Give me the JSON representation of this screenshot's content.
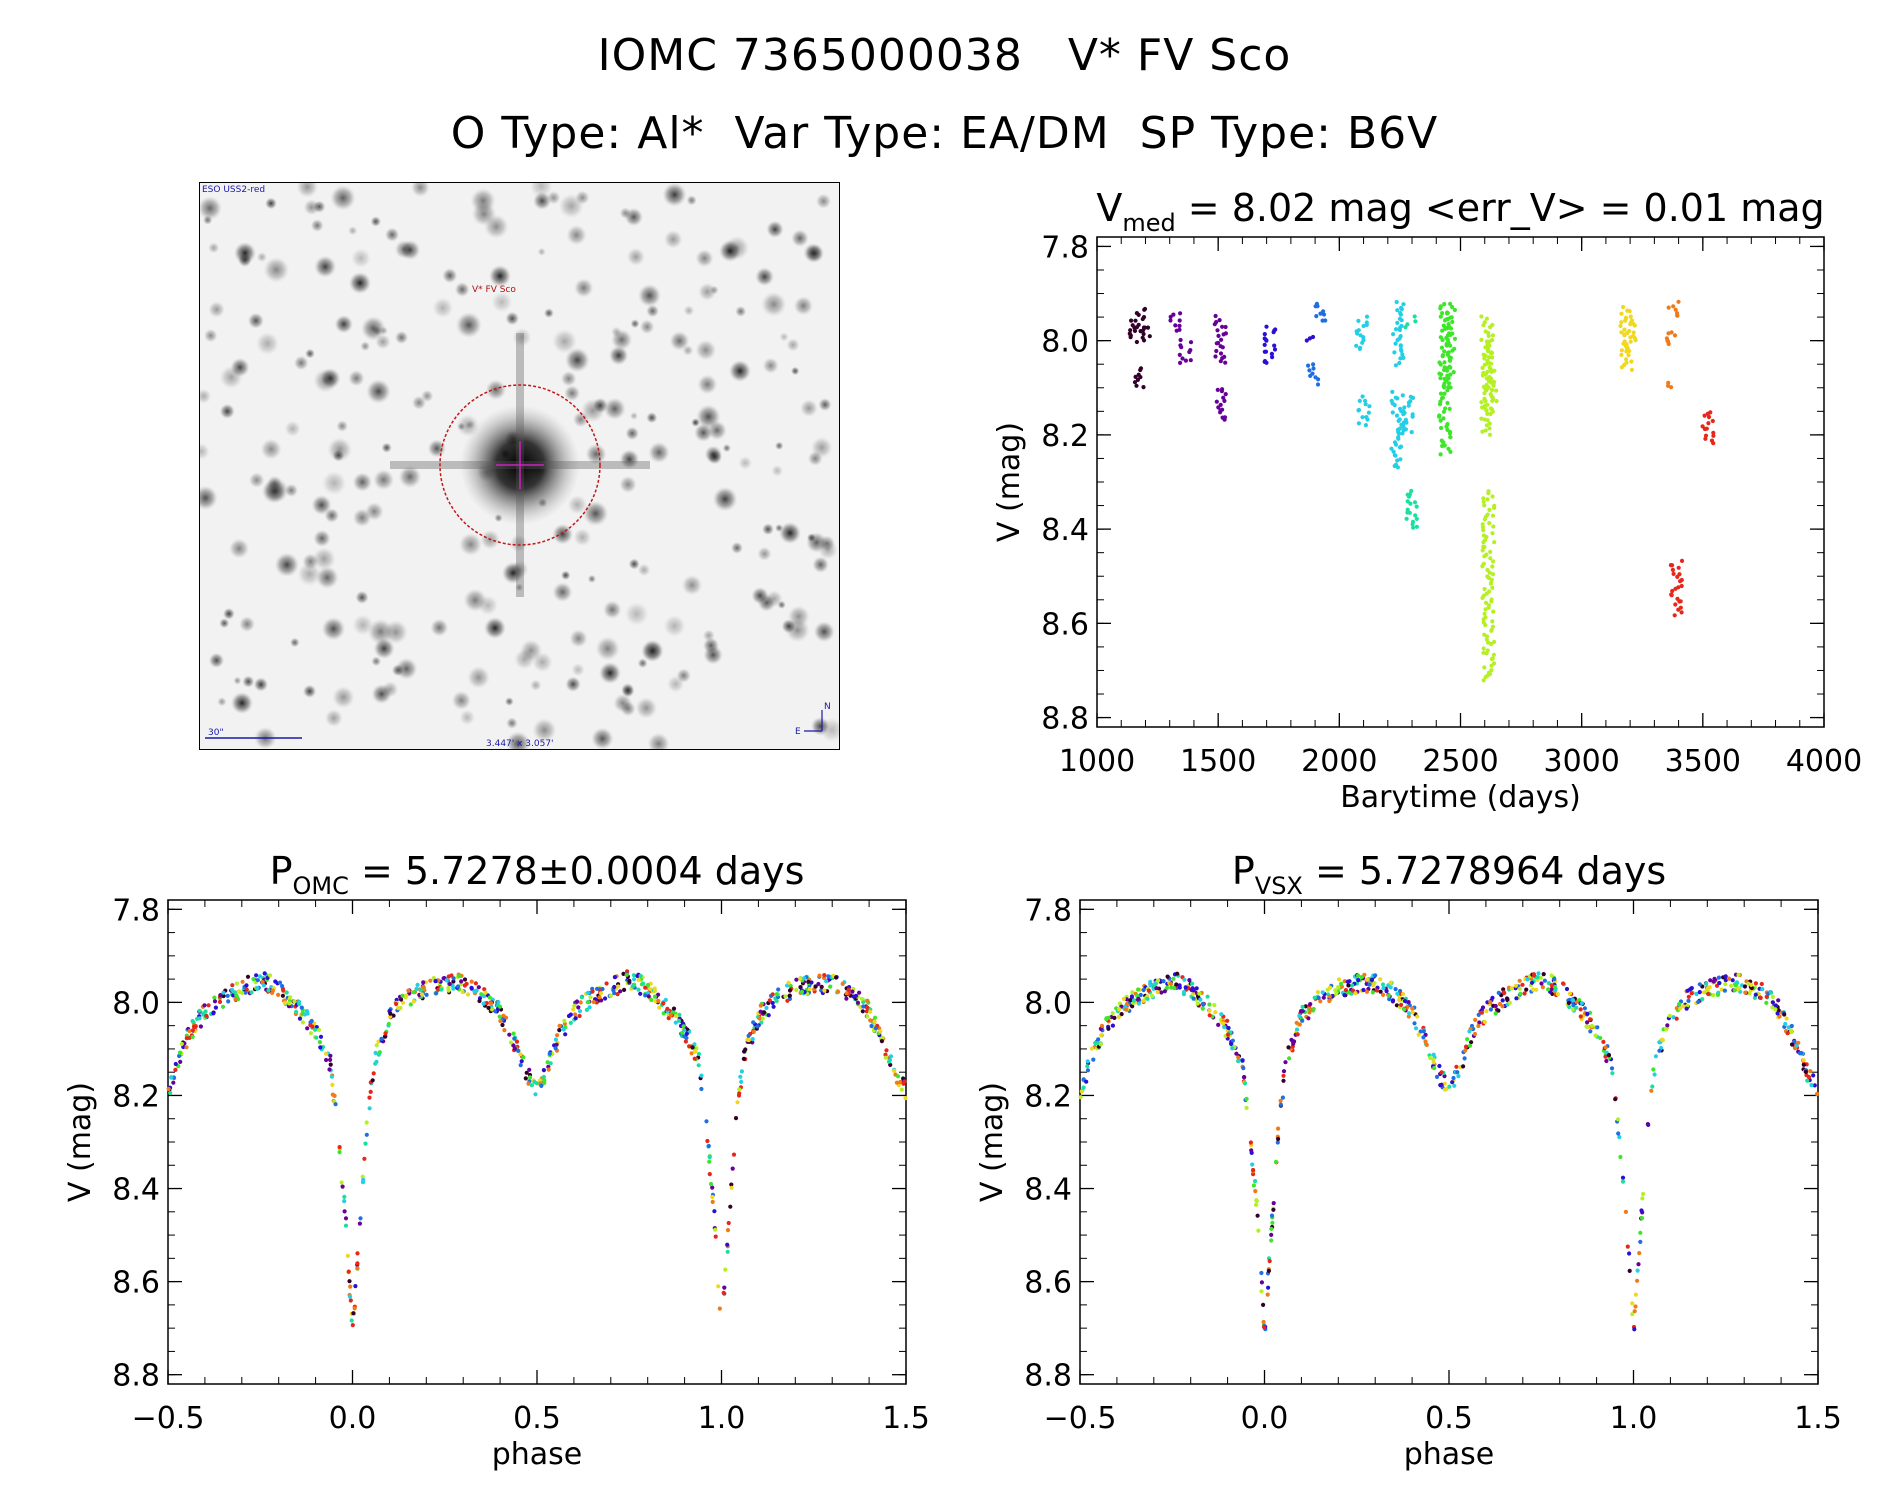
{
  "header": {
    "line1": "IOMC 7365000038   V* FV Sco",
    "line2": "O Type: Al*  Var Type: EA/DM  SP Type: B6V"
  },
  "finder_chart": {
    "survey_label": "ESO USS2-red",
    "object_label": "V* FV Sco",
    "scale_label": "30\"",
    "size_label": "3.447' x 3.057'",
    "north_label": "N",
    "east_label": "E"
  },
  "chart_data": [
    {
      "type": "scatter",
      "title_main": "V",
      "title_sub": "med",
      "title_rest": " = 8.02 mag <err_V> = 0.01 mag",
      "xlabel": "Barytime (days)",
      "ylabel": "V (mag)",
      "xlim": [
        1000,
        4000
      ],
      "ylim": [
        8.82,
        7.78
      ],
      "x_ticks": [
        "1000",
        "1500",
        "2000",
        "2500",
        "3000",
        "3500",
        "4000"
      ],
      "y_ticks": [
        "7.8",
        "8.0",
        "8.2",
        "8.4",
        "8.6",
        "8.8"
      ],
      "season_colors": [
        "#33002a",
        "#660099",
        "#2b0fd6",
        "#1e6fe3",
        "#22cfe6",
        "#19e0a0",
        "#3ee62a",
        "#b4f022",
        "#f0d81e",
        "#f07a18",
        "#e8261a"
      ],
      "clusters": [
        {
          "x": 1160,
          "ymin": 7.96,
          "ymax": 8.0,
          "color": "#33002a"
        },
        {
          "x": 1170,
          "ymin": 8.06,
          "ymax": 8.1,
          "color": "#33002a"
        },
        {
          "x": 1175,
          "ymin": 7.93,
          "ymax": 7.98,
          "color": "#33002a"
        },
        {
          "x": 1195,
          "ymin": 7.97,
          "ymax": 8.0,
          "color": "#33002a"
        },
        {
          "x": 1320,
          "ymin": 7.94,
          "ymax": 7.98,
          "color": "#660099"
        },
        {
          "x": 1365,
          "ymin": 8.0,
          "ymax": 8.05,
          "color": "#660099"
        },
        {
          "x": 1510,
          "ymin": 7.95,
          "ymax": 8.05,
          "color": "#660099"
        },
        {
          "x": 1510,
          "ymin": 8.1,
          "ymax": 8.17,
          "color": "#660099"
        },
        {
          "x": 1715,
          "ymin": 7.97,
          "ymax": 8.05,
          "color": "#2b0fd6"
        },
        {
          "x": 1870,
          "ymin": 7.99,
          "ymax": 8.0,
          "color": "#2b0fd6"
        },
        {
          "x": 1895,
          "ymin": 8.05,
          "ymax": 8.09,
          "color": "#1e6fe3"
        },
        {
          "x": 1920,
          "ymin": 7.92,
          "ymax": 7.96,
          "color": "#1e6fe3"
        },
        {
          "x": 2090,
          "ymin": 7.95,
          "ymax": 8.02,
          "color": "#22cfe6"
        },
        {
          "x": 2100,
          "ymin": 8.12,
          "ymax": 8.18,
          "color": "#22cfe6"
        },
        {
          "x": 2240,
          "ymin": 7.92,
          "ymax": 8.05,
          "color": "#22cfe6"
        },
        {
          "x": 2240,
          "ymin": 8.11,
          "ymax": 8.27,
          "color": "#22cfe6"
        },
        {
          "x": 2280,
          "ymin": 8.12,
          "ymax": 8.2,
          "color": "#22cfe6"
        },
        {
          "x": 2290,
          "ymin": 7.95,
          "ymax": 7.97,
          "color": "#19e0a0"
        },
        {
          "x": 2300,
          "ymin": 8.32,
          "ymax": 8.4,
          "color": "#19e0a0"
        },
        {
          "x": 2435,
          "ymin": 7.92,
          "ymax": 8.24,
          "color": "#3ee62a"
        },
        {
          "x": 2455,
          "ymin": 7.93,
          "ymax": 8.1,
          "color": "#3ee62a"
        },
        {
          "x": 2610,
          "ymin": 7.95,
          "ymax": 8.2,
          "color": "#b4f022"
        },
        {
          "x": 2615,
          "ymin": 8.32,
          "ymax": 8.72,
          "color": "#b4f022"
        },
        {
          "x": 2625,
          "ymin": 8.0,
          "ymax": 8.15,
          "color": "#b4f022"
        },
        {
          "x": 3185,
          "ymin": 7.93,
          "ymax": 8.06,
          "color": "#f0d81e"
        },
        {
          "x": 3200,
          "ymin": 7.95,
          "ymax": 8.02,
          "color": "#f0d81e"
        },
        {
          "x": 3355,
          "ymin": 8.09,
          "ymax": 8.1,
          "color": "#f07a18"
        },
        {
          "x": 3365,
          "ymin": 7.98,
          "ymax": 8.01,
          "color": "#f07a18"
        },
        {
          "x": 3380,
          "ymin": 7.92,
          "ymax": 7.95,
          "color": "#f07a18"
        },
        {
          "x": 3390,
          "ymin": 8.47,
          "ymax": 8.58,
          "color": "#e8261a"
        },
        {
          "x": 3520,
          "ymin": 8.15,
          "ymax": 8.22,
          "color": "#e8261a"
        }
      ]
    },
    {
      "type": "scatter",
      "title_main": "P",
      "title_sub": "OMC",
      "title_rest": " = 5.7278±0.0004 days",
      "xlabel": "phase",
      "ylabel": "V (mag)",
      "xlim": [
        -0.5,
        1.5
      ],
      "ylim": [
        8.82,
        7.78
      ],
      "x_ticks": [
        "−0.5",
        "0.0",
        "0.5",
        "1.0",
        "1.5"
      ],
      "y_ticks": [
        "7.8",
        "8.0",
        "8.2",
        "8.4",
        "8.6",
        "8.8"
      ],
      "light_curve_points": [
        {
          "phase": -0.5,
          "mag": 8.19
        },
        {
          "phase": -0.45,
          "mag": 8.08
        },
        {
          "phase": -0.4,
          "mag": 8.02
        },
        {
          "phase": -0.35,
          "mag": 7.99
        },
        {
          "phase": -0.3,
          "mag": 7.97
        },
        {
          "phase": -0.25,
          "mag": 7.95
        },
        {
          "phase": -0.2,
          "mag": 7.97
        },
        {
          "phase": -0.15,
          "mag": 8.01
        },
        {
          "phase": -0.1,
          "mag": 8.06
        },
        {
          "phase": -0.06,
          "mag": 8.13
        },
        {
          "phase": -0.04,
          "mag": 8.28
        },
        {
          "phase": -0.02,
          "mag": 8.45
        },
        {
          "phase": 0.0,
          "mag": 8.71
        },
        {
          "phase": 0.02,
          "mag": 8.48
        },
        {
          "phase": 0.04,
          "mag": 8.25
        },
        {
          "phase": 0.06,
          "mag": 8.12
        },
        {
          "phase": 0.1,
          "mag": 8.03
        },
        {
          "phase": 0.15,
          "mag": 7.99
        },
        {
          "phase": 0.2,
          "mag": 7.97
        },
        {
          "phase": 0.25,
          "mag": 7.96
        },
        {
          "phase": 0.3,
          "mag": 7.96
        },
        {
          "phase": 0.35,
          "mag": 7.98
        },
        {
          "phase": 0.4,
          "mag": 8.02
        },
        {
          "phase": 0.44,
          "mag": 8.09
        },
        {
          "phase": 0.47,
          "mag": 8.15
        },
        {
          "phase": 0.5,
          "mag": 8.19
        },
        {
          "phase": 0.53,
          "mag": 8.14
        },
        {
          "phase": 0.56,
          "mag": 8.07
        },
        {
          "phase": 0.6,
          "mag": 8.02
        },
        {
          "phase": 0.65,
          "mag": 7.99
        },
        {
          "phase": 0.7,
          "mag": 7.97
        },
        {
          "phase": 0.75,
          "mag": 7.95
        },
        {
          "phase": 0.8,
          "mag": 7.97
        },
        {
          "phase": 0.85,
          "mag": 8.01
        },
        {
          "phase": 0.9,
          "mag": 8.06
        },
        {
          "phase": 0.94,
          "mag": 8.13
        },
        {
          "phase": 0.96,
          "mag": 8.28
        },
        {
          "phase": 0.98,
          "mag": 8.45
        },
        {
          "phase": 1.0,
          "mag": 8.71
        },
        {
          "phase": 1.02,
          "mag": 8.48
        },
        {
          "phase": 1.04,
          "mag": 8.25
        },
        {
          "phase": 1.06,
          "mag": 8.12
        },
        {
          "phase": 1.1,
          "mag": 8.03
        },
        {
          "phase": 1.15,
          "mag": 7.99
        },
        {
          "phase": 1.2,
          "mag": 7.97
        },
        {
          "phase": 1.25,
          "mag": 7.96
        },
        {
          "phase": 1.3,
          "mag": 7.96
        },
        {
          "phase": 1.35,
          "mag": 7.98
        },
        {
          "phase": 1.4,
          "mag": 8.02
        },
        {
          "phase": 1.44,
          "mag": 8.09
        },
        {
          "phase": 1.47,
          "mag": 8.15
        },
        {
          "phase": 1.5,
          "mag": 8.19
        }
      ]
    },
    {
      "type": "scatter",
      "title_main": "P",
      "title_sub": "VSX",
      "title_rest": " = 5.7278964 days",
      "xlabel": "phase",
      "ylabel": "V (mag)",
      "xlim": [
        -0.5,
        1.5
      ],
      "ylim": [
        8.82,
        7.78
      ],
      "x_ticks": [
        "−0.5",
        "0.0",
        "0.5",
        "1.0",
        "1.5"
      ],
      "y_ticks": [
        "7.8",
        "8.0",
        "8.2",
        "8.4",
        "8.6",
        "8.8"
      ],
      "light_curve_points": "same as P_OMC panel"
    }
  ]
}
